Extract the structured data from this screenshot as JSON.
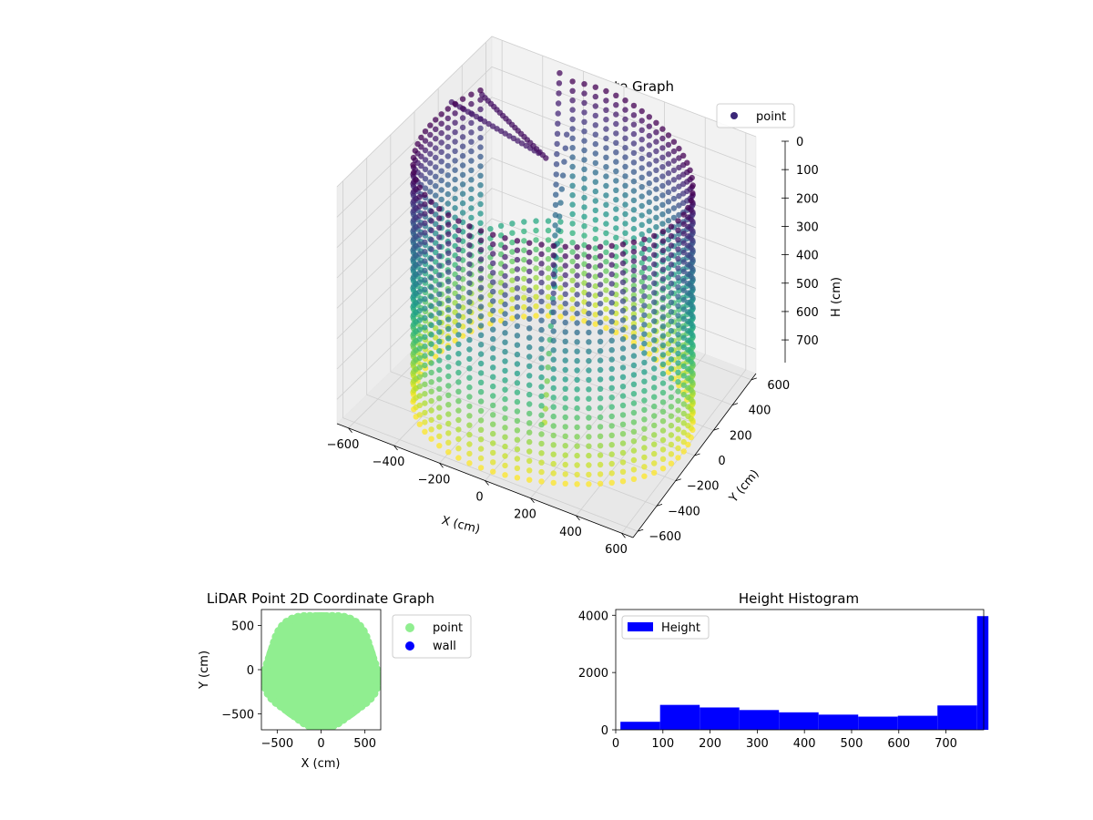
{
  "chart_data": [
    {
      "type": "scatter3d",
      "title": "LiDAR Point 3D Coordinate Graph",
      "xlabel": "X (cm)",
      "ylabel": "Y (cm)",
      "zlabel": "H (cm)",
      "xlim": [
        -650,
        650
      ],
      "ylim": [
        -650,
        650
      ],
      "zlim": [
        0,
        780
      ],
      "zinverted": true,
      "xticks": [
        -600,
        -400,
        -200,
        0,
        200,
        400,
        600
      ],
      "yticks": [
        -600,
        -400,
        -200,
        0,
        200,
        400,
        600
      ],
      "zticks": [
        0,
        100,
        200,
        300,
        400,
        500,
        600,
        700
      ],
      "grid": true,
      "legend": {
        "position": "top-right",
        "entries": [
          {
            "label": "point",
            "color": "#3b2778"
          }
        ]
      },
      "colormap": "viridis",
      "series": [
        {
          "name": "point",
          "shape": "cylinder",
          "radius_cm": 600,
          "height_range": [
            0,
            780
          ],
          "angular_columns": 72,
          "samples_per_column": 26,
          "gap_angle_deg": [
            110,
            150
          ],
          "inner_strands": [
            {
              "from": [
                -620,
                260,
                60
              ],
              "to": [
                -150,
                150,
                60
              ]
            },
            {
              "from": [
                -520,
                340,
                40
              ],
              "to": [
                -80,
                80,
                30
              ]
            },
            {
              "from": [
                -300,
                620,
                20
              ],
              "to": [
                0,
                0,
                400
              ]
            },
            {
              "from": [
                -200,
                500,
                150
              ],
              "to": [
                100,
                -300,
                700
              ]
            }
          ]
        }
      ]
    },
    {
      "type": "scatter",
      "title": "LiDAR Point 2D Coordinate Graph",
      "xlabel": "X (cm)",
      "ylabel": "Y (cm)",
      "xlim": [
        -680,
        680
      ],
      "ylim": [
        -680,
        680
      ],
      "xticks": [
        -500,
        0,
        500
      ],
      "yticks": [
        -500,
        0,
        500
      ],
      "legend": {
        "position": "right",
        "entries": [
          {
            "label": "point",
            "color": "#90ee90"
          },
          {
            "label": "wall",
            "color": "#0000ff"
          }
        ]
      },
      "series": [
        {
          "name": "point",
          "shape": "filled-disc",
          "radius": 650,
          "color": "#90ee90"
        }
      ]
    },
    {
      "type": "histogram",
      "title": "Height Histogram",
      "xlabel": "",
      "ylabel": "",
      "xlim": [
        0,
        780
      ],
      "ylim": [
        0,
        4200
      ],
      "xticks": [
        0,
        100,
        200,
        300,
        400,
        500,
        600,
        700
      ],
      "yticks": [
        0,
        2000,
        4000
      ],
      "legend": {
        "position": "top-left",
        "entries": [
          {
            "label": "Height",
            "color": "#0000ff"
          }
        ]
      },
      "bin_edges": [
        10,
        94,
        178,
        262,
        346,
        430,
        514,
        598,
        682,
        766,
        790
      ],
      "values": [
        280,
        870,
        780,
        690,
        610,
        530,
        460,
        490,
        850,
        3970
      ],
      "color": "#0000ff"
    }
  ]
}
